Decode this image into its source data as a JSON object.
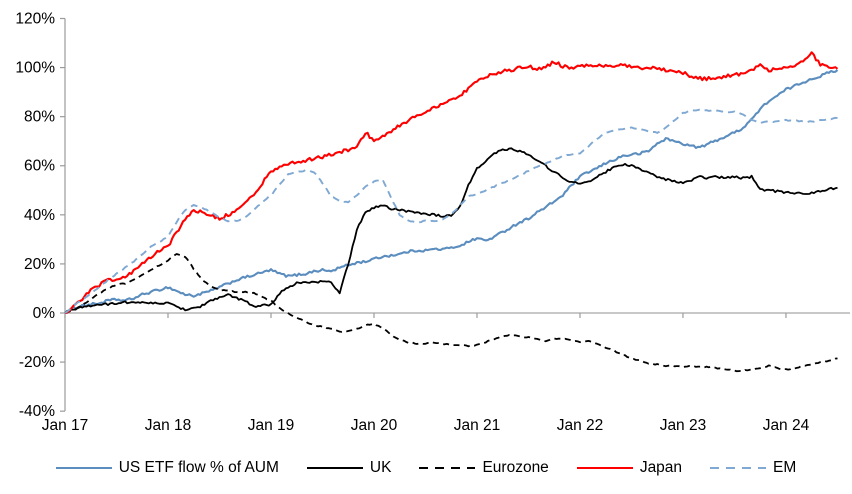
{
  "chart_data": {
    "type": "line",
    "title": "",
    "x_axis": {
      "tick_labels": [
        "Jan 17",
        "Jan 18",
        "Jan 19",
        "Jan 20",
        "Jan 21",
        "Jan 22",
        "Jan 23",
        "Jan 24"
      ],
      "start": "2017-01",
      "interval": "monthly",
      "points_per_series": 91,
      "end": "2024-07"
    },
    "y_axis": {
      "min": -40,
      "max": 120,
      "step": 20,
      "format": "percent",
      "tick_labels": [
        "120%",
        "100%",
        "80%",
        "60%",
        "40%",
        "20%",
        "0%",
        "-20%",
        "-40%"
      ]
    },
    "grid": "off",
    "legend_position": "bottom",
    "axis_color": "#9b9b9b",
    "zero_line_color": "#a6a6a6",
    "series": [
      {
        "name": "US ETF flow % of AUM",
        "color": "#5b8dbe",
        "style": "solid",
        "values": [
          0,
          2,
          3,
          3.5,
          4,
          5,
          5.5,
          5,
          6,
          7.5,
          8.5,
          9.5,
          10.5,
          9,
          7.5,
          7,
          8,
          9,
          10.5,
          12,
          13.5,
          14.5,
          15.5,
          16.5,
          17.5,
          16,
          15,
          15.5,
          16,
          17,
          17.5,
          17,
          18.5,
          19.5,
          20.5,
          21,
          22,
          23,
          23.5,
          24,
          25,
          25.5,
          25.5,
          26,
          26,
          26.5,
          27.5,
          29,
          30.5,
          29.5,
          31,
          33,
          35,
          37,
          38.5,
          41,
          43,
          45.5,
          48,
          52,
          55.5,
          57.5,
          59,
          61,
          62.5,
          64,
          64.5,
          65,
          66,
          69,
          71,
          70,
          69,
          68,
          67.5,
          69,
          70.5,
          72,
          73.5,
          75.5,
          79,
          83,
          86.5,
          88.5,
          91,
          92.5,
          94,
          95.5,
          96.5,
          98,
          99
        ]
      },
      {
        "name": "UK",
        "color": "#000000",
        "style": "solid",
        "values": [
          0,
          1.5,
          2.5,
          3,
          3.5,
          3.5,
          4,
          4.5,
          4,
          4.5,
          4,
          4,
          4,
          2.5,
          1.5,
          2,
          3,
          5,
          6.5,
          7.3,
          6,
          5,
          2.5,
          3,
          3.5,
          8,
          10.5,
          12.2,
          12.5,
          12.5,
          12.8,
          12.5,
          8,
          20,
          34,
          41,
          43,
          44,
          42.5,
          42,
          41.5,
          41,
          40.5,
          40,
          39.5,
          39.5,
          43,
          52,
          59,
          62,
          65,
          66.5,
          67,
          66,
          64.5,
          62,
          60,
          57.5,
          55,
          53.5,
          52.5,
          53.5,
          55.5,
          57.5,
          59.5,
          60.5,
          60,
          58.5,
          57,
          55.5,
          54.5,
          53.5,
          53,
          54,
          55.5,
          55,
          55.5,
          55,
          55.5,
          55,
          55.5,
          50.5,
          50,
          49.5,
          49,
          49,
          48.5,
          49,
          49.5,
          50.5,
          51
        ]
      },
      {
        "name": "Eurozone",
        "color": "#000000",
        "style": "dashed",
        "values": [
          0,
          1,
          3,
          5.5,
          8,
          10,
          11.5,
          12,
          13.5,
          15.5,
          17.5,
          19.5,
          21.5,
          24,
          23,
          18,
          13.5,
          11,
          9.5,
          9,
          8.5,
          8.5,
          8,
          6.5,
          5,
          2,
          0,
          -2,
          -3.5,
          -5,
          -5.5,
          -6.5,
          -7.5,
          -7.5,
          -6.5,
          -5,
          -4.5,
          -6,
          -9,
          -11,
          -12,
          -12.5,
          -12.5,
          -12,
          -12.5,
          -13,
          -13,
          -13.5,
          -13,
          -12,
          -10.5,
          -9.5,
          -9,
          -9.5,
          -10,
          -10.5,
          -11.5,
          -10.5,
          -10.5,
          -11,
          -12,
          -11.5,
          -12.5,
          -14,
          -15.5,
          -17,
          -18.5,
          -19.5,
          -20.5,
          -21,
          -21.5,
          -21.5,
          -22,
          -21.5,
          -22,
          -22,
          -22.5,
          -23,
          -23.5,
          -23.5,
          -23,
          -22.5,
          -21.5,
          -22.5,
          -23,
          -22.5,
          -21.5,
          -21,
          -20,
          -19.5,
          -18.5
        ]
      },
      {
        "name": "Japan",
        "color": "#fe0000",
        "style": "solid",
        "values": [
          0,
          3,
          6,
          9,
          11.5,
          13.5,
          13,
          15,
          17,
          20,
          23,
          25.5,
          27,
          33,
          38,
          42,
          41,
          39.5,
          38.5,
          40,
          42,
          45,
          48,
          53,
          58,
          59.5,
          60.5,
          61.5,
          62,
          63,
          63.5,
          64.5,
          65.5,
          66.5,
          67.5,
          73.5,
          70.5,
          72,
          74,
          76.5,
          78.5,
          80.5,
          82,
          83.5,
          85,
          86.5,
          88.5,
          91.5,
          94.5,
          96,
          97.5,
          98.5,
          99,
          100,
          100.5,
          99.5,
          100,
          102.5,
          100.5,
          100,
          100.5,
          101,
          100.5,
          101,
          100.5,
          101,
          100.5,
          100,
          100,
          99.5,
          99,
          98.5,
          98,
          96.5,
          95.5,
          95.5,
          96,
          96.5,
          97,
          97.5,
          98.5,
          101,
          99,
          99.5,
          100,
          101,
          102.5,
          106,
          101,
          100.5,
          99.5
        ]
      },
      {
        "name": "EM",
        "color": "#7fa8d2",
        "style": "dashed",
        "values": [
          0,
          3,
          5.5,
          8,
          10.5,
          13.5,
          16,
          18.5,
          21,
          24,
          27,
          29,
          31,
          37,
          42,
          44,
          43,
          41,
          39,
          37.5,
          37.5,
          39,
          42,
          45,
          48,
          52.5,
          56.5,
          57.5,
          58,
          57.5,
          53,
          47.5,
          45.5,
          45,
          48,
          51.5,
          53.5,
          54.5,
          47,
          40,
          37.5,
          37,
          37.5,
          37.5,
          38,
          40,
          44,
          47.5,
          48.5,
          50,
          51.5,
          53,
          54.5,
          56,
          58,
          59.5,
          61,
          62.5,
          64,
          64.5,
          65,
          68,
          71,
          73.5,
          74.5,
          75,
          75.5,
          75,
          74,
          73.5,
          75.5,
          78.5,
          81.5,
          82.5,
          83,
          82.5,
          82.5,
          82,
          82,
          81,
          78.5,
          77.5,
          78,
          78,
          78.5,
          78.5,
          78,
          78,
          78.5,
          79,
          79.5
        ]
      }
    ]
  }
}
